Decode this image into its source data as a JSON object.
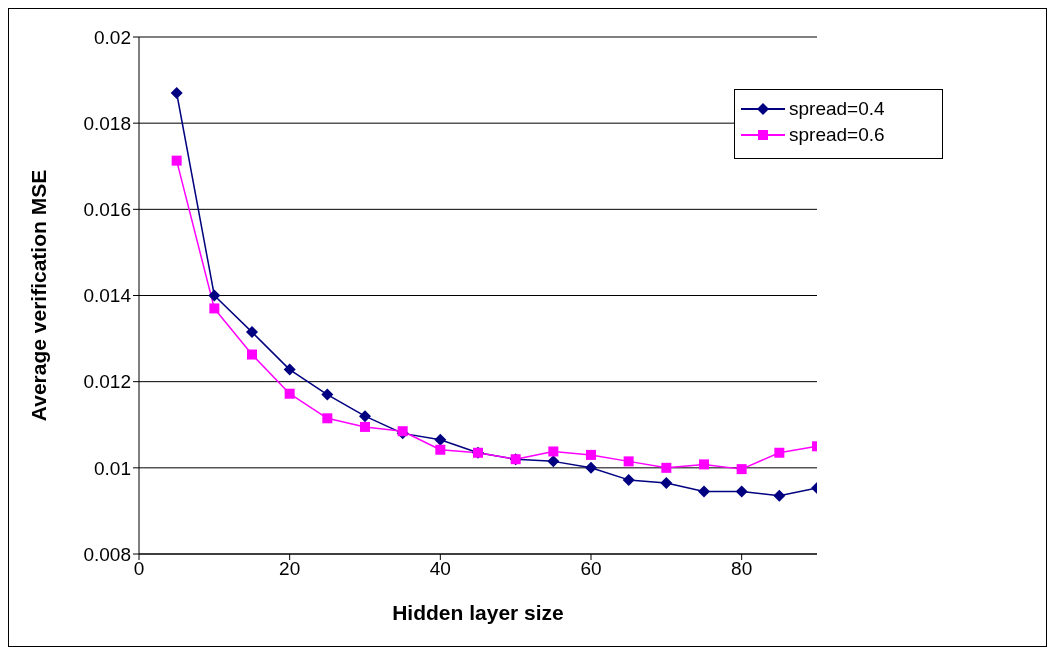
{
  "chart_data": {
    "type": "line",
    "xlabel": "Hidden layer size",
    "ylabel": "Average verification MSE",
    "x": [
      5,
      10,
      15,
      20,
      25,
      30,
      35,
      40,
      45,
      50,
      55,
      60,
      65,
      70,
      75,
      80,
      85,
      90
    ],
    "series": [
      {
        "name": "spread=0.4",
        "color": "#000080",
        "marker": "diamond",
        "values": [
          0.0187,
          0.014,
          0.01315,
          0.01228,
          0.0117,
          0.0112,
          0.0108,
          0.01065,
          0.01035,
          0.0102,
          0.01015,
          0.01,
          0.00972,
          0.00965,
          0.00945,
          0.00945,
          0.00935,
          0.00953
        ]
      },
      {
        "name": "spread=0.6",
        "color": "#ff00ff",
        "marker": "square",
        "values": [
          0.01713,
          0.0137,
          0.01263,
          0.01172,
          0.01115,
          0.01095,
          0.01085,
          0.01042,
          0.01035,
          0.0102,
          0.01038,
          0.0103,
          0.01015,
          0.01,
          0.01008,
          0.00997,
          0.01035,
          0.0105
        ]
      }
    ],
    "xlim": [
      0,
      90
    ],
    "xticks": [
      0,
      20,
      40,
      60,
      80
    ],
    "ylim": [
      0.008,
      0.02
    ],
    "yticks": [
      0.008,
      0.01,
      0.012,
      0.014,
      0.016,
      0.018,
      0.02
    ],
    "grid": "y",
    "legend": "top right"
  }
}
